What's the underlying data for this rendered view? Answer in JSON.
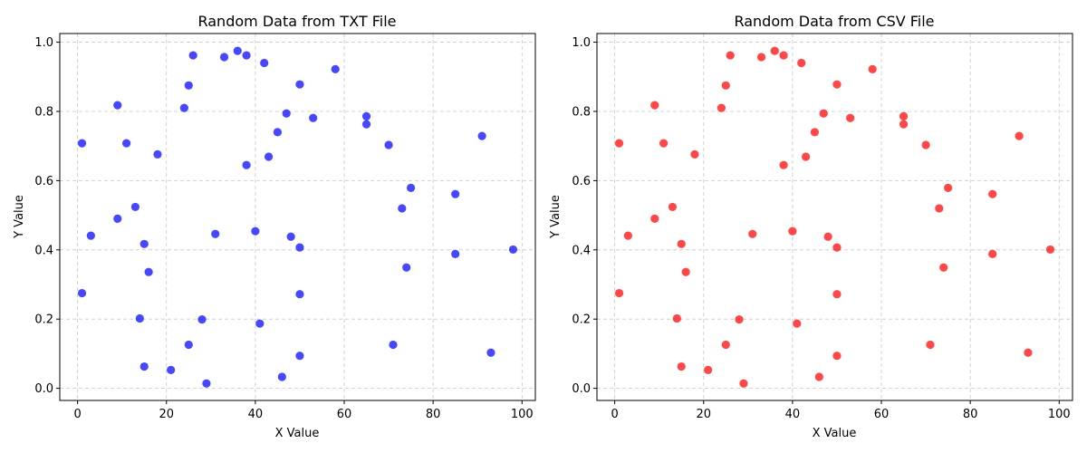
{
  "chart_data": [
    {
      "type": "scatter",
      "title": "Random Data from TXT File",
      "xlabel": "X Value",
      "ylabel": "Y Value",
      "xlim": [
        -4,
        103
      ],
      "ylim": [
        -0.035,
        1.025
      ],
      "xticks": [
        0,
        20,
        40,
        60,
        80,
        100
      ],
      "yticks": [
        0.0,
        0.2,
        0.4,
        0.6,
        0.8,
        1.0
      ],
      "grid": true,
      "series": [
        {
          "color": "#0000ff",
          "points": [
            [
              1,
              0.708
            ],
            [
              1,
              0.275
            ],
            [
              3,
              0.441
            ],
            [
              9,
              0.818
            ],
            [
              9,
              0.49
            ],
            [
              11,
              0.708
            ],
            [
              13,
              0.524
            ],
            [
              14,
              0.202
            ],
            [
              15,
              0.417
            ],
            [
              15,
              0.063
            ],
            [
              16,
              0.336
            ],
            [
              18,
              0.676
            ],
            [
              21,
              0.053
            ],
            [
              24,
              0.81
            ],
            [
              25,
              0.875
            ],
            [
              25,
              0.126
            ],
            [
              26,
              0.962
            ],
            [
              28,
              0.199
            ],
            [
              29,
              0.014
            ],
            [
              31,
              0.446
            ],
            [
              33,
              0.957
            ],
            [
              36,
              0.975
            ],
            [
              38,
              0.962
            ],
            [
              38,
              0.645
            ],
            [
              40,
              0.454
            ],
            [
              41,
              0.187
            ],
            [
              42,
              0.94
            ],
            [
              43,
              0.669
            ],
            [
              45,
              0.74
            ],
            [
              46,
              0.033
            ],
            [
              47,
              0.794
            ],
            [
              48,
              0.438
            ],
            [
              50,
              0.878
            ],
            [
              50,
              0.407
            ],
            [
              50,
              0.272
            ],
            [
              50,
              0.094
            ],
            [
              53,
              0.781
            ],
            [
              58,
              0.922
            ],
            [
              65,
              0.786
            ],
            [
              65,
              0.763
            ],
            [
              70,
              0.703
            ],
            [
              71,
              0.126
            ],
            [
              73,
              0.52
            ],
            [
              74,
              0.349
            ],
            [
              75,
              0.579
            ],
            [
              85,
              0.561
            ],
            [
              85,
              0.388
            ],
            [
              91,
              0.729
            ],
            [
              93,
              0.103
            ],
            [
              98,
              0.401
            ]
          ]
        }
      ]
    },
    {
      "type": "scatter",
      "title": "Random Data from CSV File",
      "xlabel": "X Value",
      "ylabel": "Y Value",
      "xlim": [
        -4,
        103
      ],
      "ylim": [
        -0.035,
        1.025
      ],
      "xticks": [
        0,
        20,
        40,
        60,
        80,
        100
      ],
      "yticks": [
        0.0,
        0.2,
        0.4,
        0.6,
        0.8,
        1.0
      ],
      "grid": true,
      "series": [
        {
          "color": "#ff0000",
          "points": [
            [
              1,
              0.708
            ],
            [
              1,
              0.275
            ],
            [
              3,
              0.441
            ],
            [
              9,
              0.818
            ],
            [
              9,
              0.49
            ],
            [
              11,
              0.708
            ],
            [
              13,
              0.524
            ],
            [
              14,
              0.202
            ],
            [
              15,
              0.417
            ],
            [
              15,
              0.063
            ],
            [
              16,
              0.336
            ],
            [
              18,
              0.676
            ],
            [
              21,
              0.053
            ],
            [
              24,
              0.81
            ],
            [
              25,
              0.875
            ],
            [
              25,
              0.126
            ],
            [
              26,
              0.962
            ],
            [
              28,
              0.199
            ],
            [
              29,
              0.014
            ],
            [
              31,
              0.446
            ],
            [
              33,
              0.957
            ],
            [
              36,
              0.975
            ],
            [
              38,
              0.962
            ],
            [
              38,
              0.645
            ],
            [
              40,
              0.454
            ],
            [
              41,
              0.187
            ],
            [
              42,
              0.94
            ],
            [
              43,
              0.669
            ],
            [
              45,
              0.74
            ],
            [
              46,
              0.033
            ],
            [
              47,
              0.794
            ],
            [
              48,
              0.438
            ],
            [
              50,
              0.878
            ],
            [
              50,
              0.407
            ],
            [
              50,
              0.272
            ],
            [
              50,
              0.094
            ],
            [
              53,
              0.781
            ],
            [
              58,
              0.922
            ],
            [
              65,
              0.786
            ],
            [
              65,
              0.763
            ],
            [
              70,
              0.703
            ],
            [
              71,
              0.126
            ],
            [
              73,
              0.52
            ],
            [
              74,
              0.349
            ],
            [
              75,
              0.579
            ],
            [
              85,
              0.561
            ],
            [
              85,
              0.388
            ],
            [
              91,
              0.729
            ],
            [
              93,
              0.103
            ],
            [
              98,
              0.401
            ]
          ]
        }
      ]
    }
  ]
}
